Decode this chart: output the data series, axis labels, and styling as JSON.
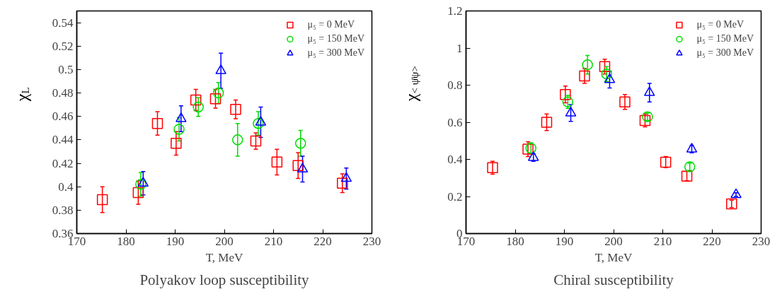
{
  "chart_data": [
    {
      "type": "scatter",
      "title": "Polyakov loop susceptibility",
      "xlabel": "T, MeV",
      "ylabel": "χ$_{L}$",
      "xlim": [
        170,
        230
      ],
      "xticks": [
        170,
        180,
        190,
        200,
        210,
        220,
        230
      ],
      "ylim": [
        0.36,
        0.55
      ],
      "yticks": [
        0.36,
        0.38,
        0.4,
        0.42,
        0.44,
        0.46,
        0.48,
        0.5,
        0.52,
        0.54
      ],
      "grid": false,
      "legend": "top right",
      "series": [
        {
          "name": "μ₅ = 0 MeV",
          "color": "#ff0000",
          "marker": "square",
          "x": [
            175.2,
            182.5,
            186.4,
            190.2,
            194.2,
            198.2,
            202.3,
            206.4,
            210.7,
            215.0,
            224.0
          ],
          "values": [
            0.389,
            0.395,
            0.454,
            0.437,
            0.474,
            0.475,
            0.466,
            0.439,
            0.421,
            0.418,
            0.403
          ],
          "errors": [
            0.011,
            0.01,
            0.01,
            0.01,
            0.009,
            0.008,
            0.008,
            0.007,
            0.011,
            0.011,
            0.008
          ]
        },
        {
          "name": "μ₅ = 150 MeV",
          "color": "#00dd00",
          "marker": "circle",
          "x": [
            183.0,
            190.8,
            194.7,
            198.8,
            202.7,
            206.9,
            215.5
          ],
          "values": [
            0.402,
            0.449,
            0.468,
            0.48,
            0.44,
            0.454,
            0.437
          ],
          "errors": [
            0.01,
            0.01,
            0.008,
            0.009,
            0.014,
            0.01,
            0.011
          ]
        },
        {
          "name": "μ₅ = 300 MeV",
          "color": "#0000ff",
          "marker": "triangle",
          "x": [
            183.5,
            191.2,
            199.3,
            207.4,
            215.9,
            224.8
          ],
          "values": [
            0.403,
            0.458,
            0.499,
            0.455,
            0.415,
            0.407
          ],
          "errors": [
            0.01,
            0.011,
            0.015,
            0.013,
            0.011,
            0.009
          ]
        }
      ]
    },
    {
      "type": "scatter",
      "title": "Chiral susceptibility",
      "xlabel": "T, MeV",
      "ylabel": "χ$_{< ψ̄ψ>}$",
      "xlim": [
        170,
        230
      ],
      "xticks": [
        170,
        180,
        190,
        200,
        210,
        220,
        230
      ],
      "ylim": [
        0,
        1.2
      ],
      "yticks": [
        0,
        0.2,
        0.4,
        0.6,
        0.8,
        1,
        1.2
      ],
      "grid": false,
      "legend": "top right",
      "series": [
        {
          "name": "μ₅ = 0 MeV",
          "color": "#ff0000",
          "marker": "square",
          "x": [
            175.4,
            182.6,
            186.4,
            190.2,
            194.1,
            198.2,
            202.3,
            206.4,
            210.6,
            214.9,
            224.0
          ],
          "values": [
            0.355,
            0.455,
            0.6,
            0.75,
            0.85,
            0.9,
            0.71,
            0.61,
            0.385,
            0.31,
            0.16
          ],
          "errors": [
            0.035,
            0.04,
            0.045,
            0.045,
            0.04,
            0.04,
            0.04,
            0.035,
            0.03,
            0.025,
            0.02
          ]
        },
        {
          "name": "μ₅ = 150 MeV",
          "color": "#00dd00",
          "marker": "circle",
          "x": [
            183.2,
            190.7,
            194.7,
            198.6,
            206.9,
            215.5
          ],
          "values": [
            0.46,
            0.71,
            0.91,
            0.86,
            0.63,
            0.36
          ],
          "errors": [
            0.03,
            0.035,
            0.05,
            0.04,
            0.02,
            0.02
          ]
        },
        {
          "name": "μ₅ = 300 MeV",
          "color": "#0000ff",
          "marker": "triangle",
          "x": [
            183.7,
            191.3,
            199.2,
            207.3,
            215.9,
            224.9
          ],
          "values": [
            0.41,
            0.65,
            0.83,
            0.76,
            0.455,
            0.21
          ],
          "errors": [
            0.02,
            0.045,
            0.045,
            0.05,
            0.02,
            0.01
          ]
        }
      ]
    }
  ]
}
